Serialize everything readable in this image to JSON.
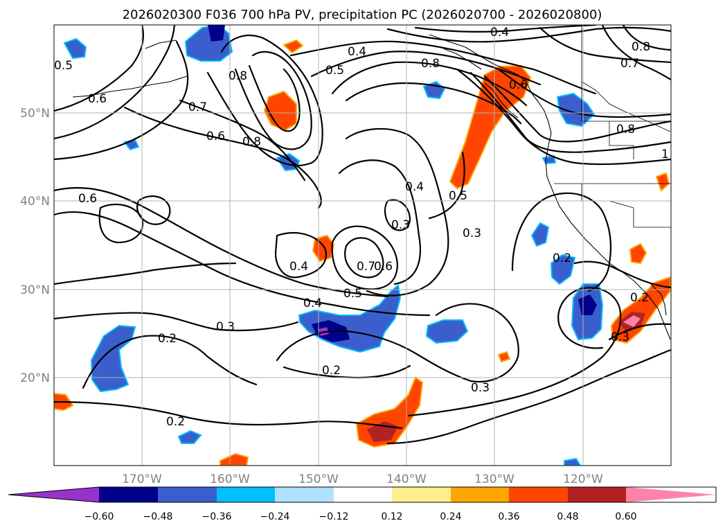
{
  "title": "2026020300 F036 700 hPa PV, precipitation PC (2026020700 - 2026020800)",
  "map": {
    "lat_range": [
      10,
      60
    ],
    "lon_range": [
      -180,
      -110
    ],
    "lat_ticks": [
      "20°N",
      "30°N",
      "40°N",
      "50°N"
    ],
    "lon_ticks": [
      "170°W",
      "160°W",
      "150°W",
      "140°W",
      "130°W",
      "120°W"
    ],
    "contour_labels": [
      "0.4",
      "0.4",
      "0.5",
      "0.5",
      "0.8",
      "0.8",
      "0.7",
      "0.6",
      "0.7",
      "0.6",
      "0.8",
      "0.8",
      "0.6",
      "0.6",
      "0.5",
      "0.8",
      "1",
      "0.4",
      "0.3",
      "0.3",
      "0.4",
      "0.5",
      "0.7",
      "0.6",
      "0.4",
      "0.2",
      "0.3",
      "0.2",
      "0.2",
      "0.2",
      "0.3",
      "0.3",
      "0.2"
    ]
  },
  "colorbar": {
    "tick_labels": [
      "−0.60",
      "−0.48",
      "−0.36",
      "−0.24",
      "−0.12",
      "0.12",
      "0.24",
      "0.36",
      "0.48",
      "0.60"
    ],
    "colors": [
      "#9932cc",
      "#00008b",
      "#3a5fcd",
      "#00bfff",
      "#b0e2ff",
      "#ffffff",
      "#ffec8b",
      "#ffa500",
      "#ff4500",
      "#b22222",
      "#ff82ab"
    ]
  }
}
